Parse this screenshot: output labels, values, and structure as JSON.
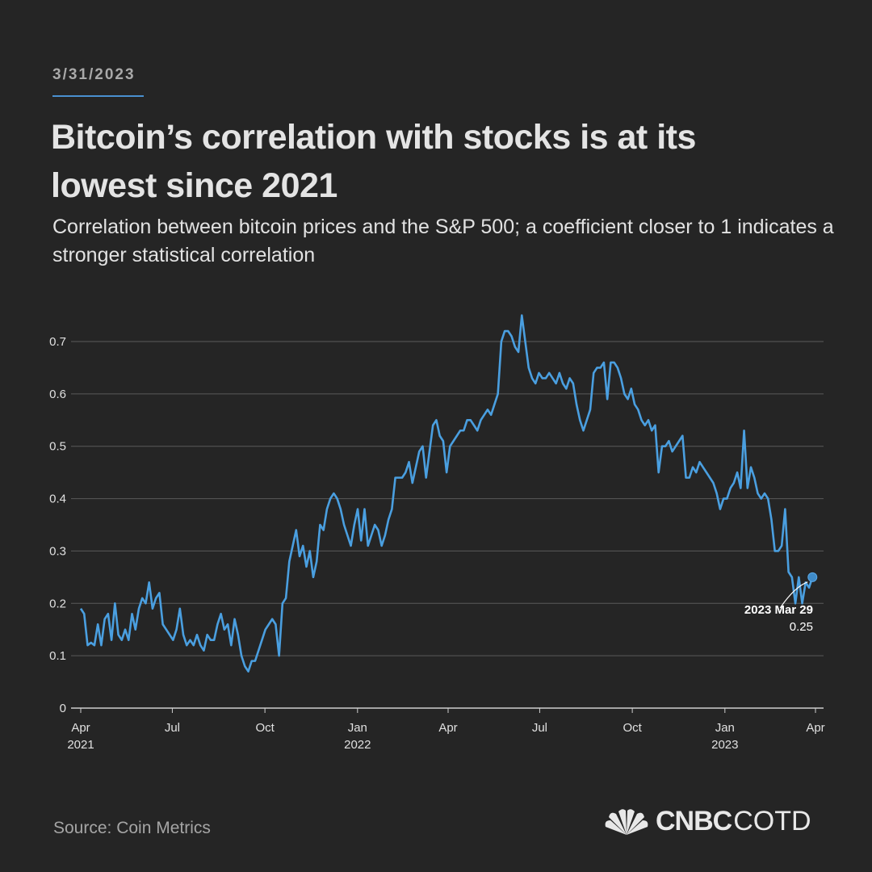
{
  "header": {
    "date": "3/31/2023",
    "title": "Bitcoin’s correlation with stocks is at its lowest since 2021",
    "subtitle": "Correlation between bitcoin prices and the S&P 500; a coefficient closer to 1 indicates a stronger statistical correlation"
  },
  "footer": {
    "source": "Source: Coin Metrics",
    "logo_brand": "CNBC",
    "logo_suffix": "COTD"
  },
  "colors": {
    "background": "#252525",
    "line": "#4a9fe0",
    "grid": "#5a5a5a"
  },
  "chart_data": {
    "type": "line",
    "title": "",
    "xlabel": "",
    "ylabel": "",
    "x_range": [
      "2021-04-01",
      "2023-03-29"
    ],
    "ylim": [
      0,
      0.7
    ],
    "grid": true,
    "y_ticks": [
      "0",
      "0.1",
      "0.2",
      "0.3",
      "0.4",
      "0.5",
      "0.6",
      "0.7"
    ],
    "x_ticks": [
      {
        "label": "Apr",
        "sub": "2021",
        "date": "2021-04-01"
      },
      {
        "label": "Jul",
        "sub": "",
        "date": "2021-07-01"
      },
      {
        "label": "Oct",
        "sub": "",
        "date": "2021-10-01"
      },
      {
        "label": "Jan",
        "sub": "2022",
        "date": "2022-01-01"
      },
      {
        "label": "Apr",
        "sub": "",
        "date": "2022-04-01"
      },
      {
        "label": "Jul",
        "sub": "",
        "date": "2022-07-01"
      },
      {
        "label": "Oct",
        "sub": "",
        "date": "2022-10-01"
      },
      {
        "label": "Jan",
        "sub": "2023",
        "date": "2023-01-01"
      },
      {
        "label": "Apr",
        "sub": "",
        "date": "2023-04-01"
      }
    ],
    "values": [
      0.19,
      0.18,
      0.12,
      0.125,
      0.12,
      0.16,
      0.12,
      0.17,
      0.18,
      0.13,
      0.2,
      0.14,
      0.13,
      0.15,
      0.13,
      0.18,
      0.15,
      0.19,
      0.21,
      0.2,
      0.24,
      0.19,
      0.21,
      0.22,
      0.16,
      0.15,
      0.14,
      0.13,
      0.15,
      0.19,
      0.14,
      0.12,
      0.13,
      0.12,
      0.14,
      0.12,
      0.11,
      0.14,
      0.13,
      0.13,
      0.16,
      0.18,
      0.15,
      0.16,
      0.12,
      0.17,
      0.14,
      0.1,
      0.08,
      0.07,
      0.09,
      0.09,
      0.11,
      0.13,
      0.15,
      0.16,
      0.17,
      0.16,
      0.1,
      0.2,
      0.21,
      0.28,
      0.31,
      0.34,
      0.29,
      0.31,
      0.27,
      0.3,
      0.25,
      0.28,
      0.35,
      0.34,
      0.38,
      0.4,
      0.41,
      0.4,
      0.38,
      0.35,
      0.33,
      0.31,
      0.35,
      0.38,
      0.32,
      0.38,
      0.31,
      0.33,
      0.35,
      0.34,
      0.31,
      0.33,
      0.36,
      0.38,
      0.44,
      0.44,
      0.44,
      0.45,
      0.47,
      0.43,
      0.46,
      0.49,
      0.5,
      0.44,
      0.49,
      0.54,
      0.55,
      0.52,
      0.51,
      0.45,
      0.5,
      0.51,
      0.52,
      0.53,
      0.53,
      0.55,
      0.55,
      0.54,
      0.53,
      0.55,
      0.56,
      0.57,
      0.56,
      0.58,
      0.6,
      0.7,
      0.72,
      0.72,
      0.71,
      0.69,
      0.68,
      0.75,
      0.7,
      0.65,
      0.63,
      0.62,
      0.64,
      0.63,
      0.63,
      0.64,
      0.63,
      0.62,
      0.64,
      0.62,
      0.61,
      0.63,
      0.62,
      0.58,
      0.55,
      0.53,
      0.55,
      0.57,
      0.64,
      0.65,
      0.65,
      0.66,
      0.59,
      0.66,
      0.66,
      0.65,
      0.63,
      0.6,
      0.59,
      0.61,
      0.58,
      0.57,
      0.55,
      0.54,
      0.55,
      0.53,
      0.54,
      0.45,
      0.5,
      0.5,
      0.51,
      0.49,
      0.5,
      0.51,
      0.52,
      0.44,
      0.44,
      0.46,
      0.45,
      0.47,
      0.46,
      0.45,
      0.44,
      0.43,
      0.41,
      0.38,
      0.4,
      0.4,
      0.42,
      0.43,
      0.45,
      0.42,
      0.53,
      0.42,
      0.46,
      0.44,
      0.41,
      0.4,
      0.41,
      0.4,
      0.36,
      0.3,
      0.3,
      0.31,
      0.38,
      0.26,
      0.25,
      0.2,
      0.25,
      0.2,
      0.24,
      0.23,
      0.25
    ],
    "annotation": {
      "date_label": "2023 Mar 29",
      "value_label": "0.25",
      "date": "2023-03-29",
      "value": 0.25
    }
  }
}
